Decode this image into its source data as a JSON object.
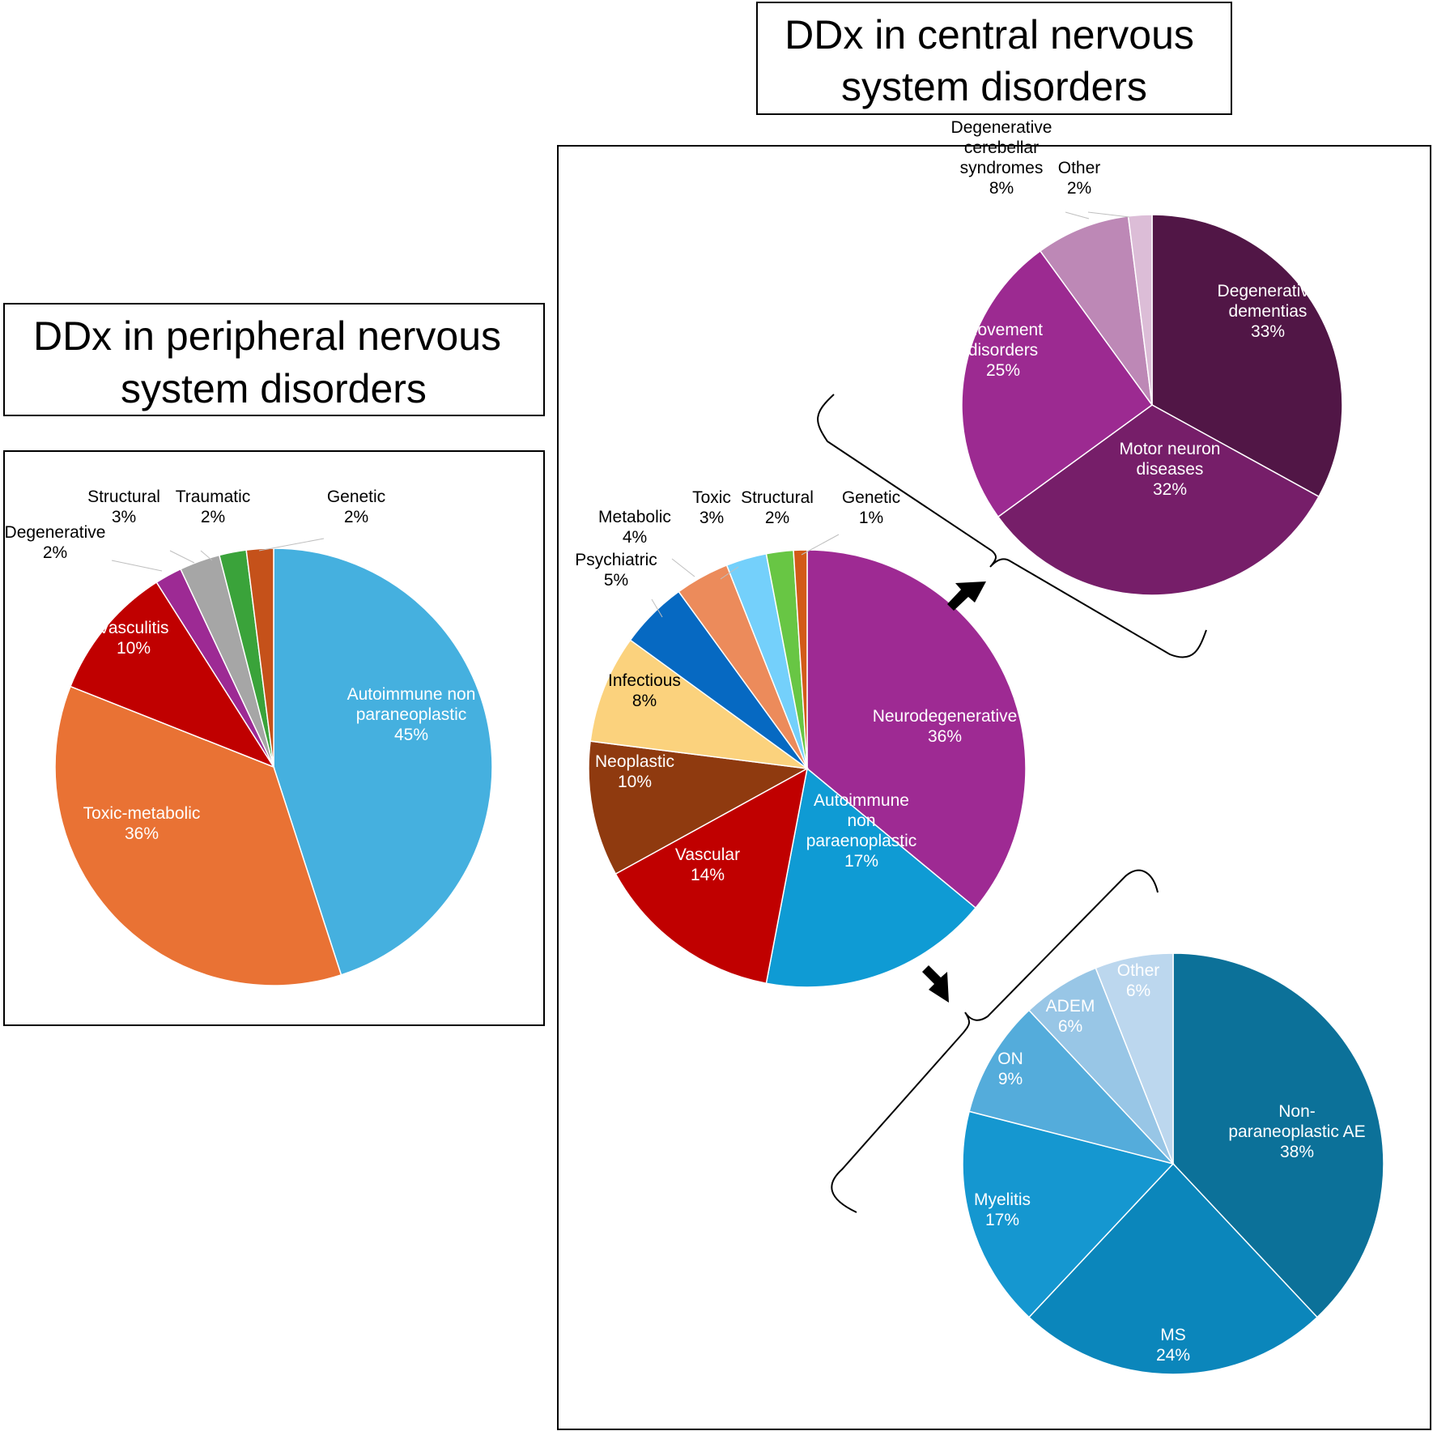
{
  "titles": {
    "peripheral": [
      "DDx in peripheral nervous",
      "system disorders"
    ],
    "central": [
      "DDx in central nervous",
      "system disorders"
    ]
  },
  "chart_data": [
    {
      "id": "pns",
      "type": "pie",
      "title": "DDx in peripheral nervous system disorders",
      "slices": [
        {
          "label": "Autoimmune non paraneoplastic",
          "value": 45,
          "color": "#45b0df"
        },
        {
          "label": "Toxic-metabolic",
          "value": 36,
          "color": "#e97234"
        },
        {
          "label": "Vasculitis",
          "value": 10,
          "color": "#c00000"
        },
        {
          "label": "Degenerative",
          "value": 2,
          "color": "#9d2a94"
        },
        {
          "label": "Structural",
          "value": 3,
          "color": "#a6a6a6"
        },
        {
          "label": "Traumatic",
          "value": 2,
          "color": "#3aa33a"
        },
        {
          "label": "Genetic",
          "value": 2,
          "color": "#c5511a"
        }
      ]
    },
    {
      "id": "cns",
      "type": "pie",
      "title": "DDx in central nervous system disorders",
      "slices": [
        {
          "label": "Neurodegenerative",
          "value": 36,
          "color": "#9e2a93"
        },
        {
          "label": "Autoimmune non paraenoplastic",
          "value": 17,
          "color": "#0f9bd4"
        },
        {
          "label": "Vascular",
          "value": 14,
          "color": "#c00000"
        },
        {
          "label": "Neoplastic",
          "value": 10,
          "color": "#8f3a0f"
        },
        {
          "label": "Infectious",
          "value": 8,
          "color": "#fbd27d"
        },
        {
          "label": "Psychiatric",
          "value": 5,
          "color": "#0669c2"
        },
        {
          "label": "Metabolic",
          "value": 4,
          "color": "#ec8b5b"
        },
        {
          "label": "Toxic",
          "value": 3,
          "color": "#74d0fb"
        },
        {
          "label": "Structural",
          "value": 2,
          "color": "#68c644"
        },
        {
          "label": "Genetic",
          "value": 1,
          "color": "#d25a18"
        }
      ]
    },
    {
      "id": "neurodegenerative",
      "type": "pie",
      "parent": "Neurodegenerative",
      "slices": [
        {
          "label": "Degenerative dementias",
          "value": 33,
          "color": "#511646"
        },
        {
          "label": "Motor neuron diseases",
          "value": 32,
          "color": "#761e69"
        },
        {
          "label": "Movement disorders",
          "value": 25,
          "color": "#9c2a91"
        },
        {
          "label": "Degenerative cerebellar syndromes",
          "value": 8,
          "color": "#bd88b6"
        },
        {
          "label": "Other",
          "value": 2,
          "color": "#dcbdd7"
        }
      ]
    },
    {
      "id": "autoimmune",
      "type": "pie",
      "parent": "Autoimmune non paraenoplastic",
      "slices": [
        {
          "label": "Non-paraneoplastic AE",
          "value": 38,
          "color": "#0c7199"
        },
        {
          "label": "MS",
          "value": 24,
          "color": "#0b86bb"
        },
        {
          "label": "Myelitis",
          "value": 17,
          "color": "#1597d0"
        },
        {
          "label": "ON",
          "value": 9,
          "color": "#54acdb"
        },
        {
          "label": "ADEM",
          "value": 6,
          "color": "#98c6e6"
        },
        {
          "label": "Other",
          "value": 6,
          "color": "#bcd7ee"
        }
      ]
    }
  ]
}
